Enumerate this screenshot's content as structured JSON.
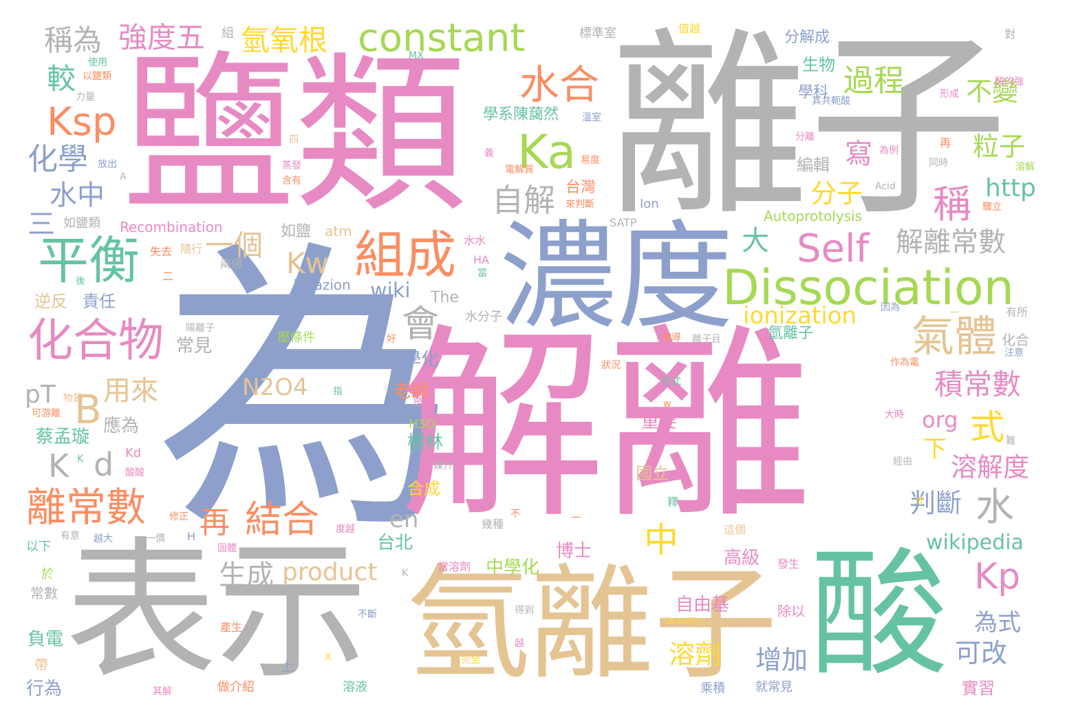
{
  "palette": {
    "pink": "#e78ac3",
    "gray": "#b3b3b3",
    "blue": "#8da0cb",
    "tan": "#e5c494",
    "green": "#66c2a5",
    "orange": "#fc8d62",
    "lime": "#a6d854",
    "yellow": "#ffd92f"
  },
  "words": [
    {
      "text": "為",
      "color": "blue"
    },
    {
      "text": "解離",
      "color": "pink"
    },
    {
      "text": "鹽類",
      "color": "pink"
    },
    {
      "text": "離子",
      "color": "gray"
    },
    {
      "text": "表示",
      "color": "gray"
    },
    {
      "text": "氫離子",
      "color": "tan"
    },
    {
      "text": "酸",
      "color": "green"
    },
    {
      "text": "濃度",
      "color": "blue"
    },
    {
      "text": "Dissociation",
      "color": "lime"
    },
    {
      "text": "constant",
      "color": "lime"
    },
    {
      "text": "平衡",
      "color": "green"
    },
    {
      "text": "組成",
      "color": "orange"
    },
    {
      "text": "化合物",
      "color": "pink"
    },
    {
      "text": "Ka",
      "color": "lime"
    },
    {
      "text": "Self",
      "color": "pink"
    },
    {
      "text": "離常數",
      "color": "orange"
    },
    {
      "text": "Ksp",
      "color": "orange"
    },
    {
      "text": "水合",
      "color": "orange"
    },
    {
      "text": "氣體",
      "color": "tan"
    },
    {
      "text": "Kp",
      "color": "pink"
    },
    {
      "text": "再",
      "color": "orange"
    },
    {
      "text": "結合",
      "color": "orange"
    },
    {
      "text": "自解",
      "color": "gray"
    },
    {
      "text": "過程",
      "color": "lime"
    },
    {
      "text": "稱",
      "color": "pink"
    },
    {
      "text": "水",
      "color": "gray"
    },
    {
      "text": "中",
      "color": "yellow"
    },
    {
      "text": "會",
      "color": "gray"
    },
    {
      "text": "ionization",
      "color": "yellow"
    },
    {
      "text": "解離常數",
      "color": "gray"
    },
    {
      "text": "積常數",
      "color": "pink"
    },
    {
      "text": "氫氧根",
      "color": "yellow"
    },
    {
      "text": "強度五",
      "color": "pink"
    },
    {
      "text": "稱為",
      "color": "gray"
    },
    {
      "text": "較",
      "color": "green"
    },
    {
      "text": "化學",
      "color": "blue"
    },
    {
      "text": "水中",
      "color": "blue"
    },
    {
      "text": "三",
      "color": "blue"
    },
    {
      "text": "一個",
      "color": "tan"
    },
    {
      "text": "Kw",
      "color": "tan"
    },
    {
      "text": "大",
      "color": "green"
    },
    {
      "text": "B",
      "color": "tan"
    },
    {
      "text": "用來",
      "color": "tan"
    },
    {
      "text": "pT",
      "color": "gray"
    },
    {
      "text": "K",
      "color": "gray"
    },
    {
      "text": "d",
      "color": "gray"
    },
    {
      "text": "N2O4",
      "color": "tan"
    },
    {
      "text": "分子",
      "color": "yellow"
    },
    {
      "text": "式",
      "color": "yellow"
    },
    {
      "text": "粒子",
      "color": "lime"
    },
    {
      "text": "http",
      "color": "green"
    },
    {
      "text": "不變",
      "color": "lime"
    },
    {
      "text": "寫",
      "color": "pink"
    },
    {
      "text": "org",
      "color": "pink"
    },
    {
      "text": "溶解度",
      "color": "pink"
    },
    {
      "text": "下",
      "color": "yellow"
    },
    {
      "text": "判斷",
      "color": "blue"
    },
    {
      "text": "wiki",
      "color": "blue"
    },
    {
      "text": "en",
      "color": "gray"
    },
    {
      "text": "生成",
      "color": "gray"
    },
    {
      "text": "product",
      "color": "tan"
    },
    {
      "text": "溶劑",
      "color": "yellow"
    },
    {
      "text": "增加",
      "color": "blue"
    },
    {
      "text": "可改",
      "color": "blue"
    },
    {
      "text": "為式",
      "color": "blue"
    },
    {
      "text": "wikipedia",
      "color": "green"
    },
    {
      "text": "高級",
      "color": "pink"
    },
    {
      "text": "自由基",
      "color": "pink"
    },
    {
      "text": "實習",
      "color": "pink"
    },
    {
      "text": "負電",
      "color": "green"
    },
    {
      "text": "行為",
      "color": "blue"
    },
    {
      "text": "博士",
      "color": "pink"
    },
    {
      "text": "中學化",
      "color": "lime"
    },
    {
      "text": "台北",
      "color": "green"
    },
    {
      "text": "大學化",
      "color": "blue"
    },
    {
      "text": "老師",
      "color": "orange"
    },
    {
      "text": "樹林",
      "color": "green"
    },
    {
      "text": "合成",
      "color": "yellow"
    },
    {
      "text": "國立",
      "color": "tan"
    },
    {
      "text": "重要",
      "color": "pink"
    },
    {
      "text": "常見",
      "color": "gray"
    },
    {
      "text": "應為",
      "color": "gray"
    },
    {
      "text": "蔡孟璇",
      "color": "green"
    },
    {
      "text": "責任",
      "color": "blue"
    },
    {
      "text": "逆反",
      "color": "tan"
    },
    {
      "text": "小",
      "color": "blue"
    },
    {
      "text": "學系陳藹然",
      "color": "green"
    },
    {
      "text": "生物",
      "color": "green"
    },
    {
      "text": "學科",
      "color": "blue"
    },
    {
      "text": "分解成",
      "color": "blue"
    },
    {
      "text": "編輯",
      "color": "gray"
    },
    {
      "text": "Autoprotolysis",
      "color": "lime"
    },
    {
      "text": "氫離子",
      "color": "green"
    },
    {
      "text": "台灣",
      "color": "orange"
    },
    {
      "text": "如鹽",
      "color": "gray"
    },
    {
      "text": "atm",
      "color": "tan"
    },
    {
      "text": "ionazion",
      "color": "blue"
    },
    {
      "text": "The",
      "color": "gray"
    },
    {
      "text": "Recombination",
      "color": "pink"
    },
    {
      "text": "如鹽類",
      "color": "gray"
    },
    {
      "text": "化合",
      "color": "gray"
    },
    {
      "text": "壓條件",
      "color": "lime"
    },
    {
      "text": "水分子",
      "color": "gray"
    },
    {
      "text": "H3O",
      "color": "lime"
    },
    {
      "text": "Kd",
      "color": "pink"
    },
    {
      "text": "溶液",
      "color": "green"
    },
    {
      "text": "做介紹",
      "color": "orange"
    },
    {
      "text": "乘積",
      "color": "blue"
    },
    {
      "text": "就常見",
      "color": "blue"
    },
    {
      "text": "常數",
      "color": "gray"
    },
    {
      "text": "帶",
      "color": "tan"
    },
    {
      "text": "以下",
      "color": "green"
    },
    {
      "text": "於",
      "color": "lime"
    },
    {
      "text": "上",
      "color": "blue"
    },
    {
      "text": "除以",
      "color": "pink"
    },
    {
      "text": "溶解",
      "color": "lime"
    },
    {
      "text": "對",
      "color": "gray"
    },
    {
      "text": "有所",
      "color": "gray"
    },
    {
      "text": "組",
      "color": "gray"
    },
    {
      "text": "MX",
      "color": "green"
    },
    {
      "text": "標準室",
      "color": "gray"
    },
    {
      "text": "值越",
      "color": "yellow"
    },
    {
      "text": "Ion",
      "color": "blue"
    },
    {
      "text": "SATP",
      "color": "gray"
    },
    {
      "text": "HA",
      "color": "pink"
    },
    {
      "text": "Acid",
      "color": "gray"
    },
    {
      "text": "使用",
      "color": "green"
    },
    {
      "text": "以鹽類",
      "color": "orange"
    },
    {
      "text": "力量",
      "color": "gray"
    },
    {
      "text": "放出",
      "color": "blue"
    },
    {
      "text": "失去",
      "color": "orange"
    },
    {
      "text": "隨行",
      "color": "tan"
    },
    {
      "text": "兩個",
      "color": "gray"
    },
    {
      "text": "水水",
      "color": "pink"
    },
    {
      "text": "陽離子",
      "color": "gray"
    },
    {
      "text": "離子且",
      "color": "gray"
    },
    {
      "text": "傳導",
      "color": "orange"
    },
    {
      "text": "形式",
      "color": "green"
    },
    {
      "text": "狀況",
      "color": "orange"
    },
    {
      "text": "溫室",
      "color": "blue"
    },
    {
      "text": "電解質",
      "color": "orange"
    },
    {
      "text": "易度",
      "color": "orange"
    },
    {
      "text": "來判斷",
      "color": "orange"
    },
    {
      "text": "分離",
      "color": "pink"
    },
    {
      "text": "為例",
      "color": "pink"
    },
    {
      "text": "同時",
      "color": "gray"
    },
    {
      "text": "驟立",
      "color": "orange"
    },
    {
      "text": "作為電",
      "color": "orange"
    },
    {
      "text": "因為",
      "color": "blue"
    },
    {
      "text": "注意",
      "color": "blue"
    },
    {
      "text": "形成",
      "color": "pink"
    },
    {
      "text": "酸的強",
      "color": "pink"
    },
    {
      "text": "其共軛酸",
      "color": "blue"
    },
    {
      "text": "是非",
      "color": "pink"
    },
    {
      "text": "媒介",
      "color": "gray"
    },
    {
      "text": "幾種",
      "color": "gray"
    },
    {
      "text": "不斷",
      "color": "blue"
    },
    {
      "text": "得到",
      "color": "gray"
    },
    {
      "text": "完全",
      "color": "yellow"
    },
    {
      "text": "產生",
      "color": "orange"
    },
    {
      "text": "Solubility",
      "color": "yellow"
    },
    {
      "text": "發生",
      "color": "pink"
    },
    {
      "text": "其解",
      "color": "pink"
    },
    {
      "text": "越大",
      "color": "blue"
    },
    {
      "text": "有意",
      "color": "gray"
    },
    {
      "text": "一價",
      "color": "gray"
    },
    {
      "text": "固體",
      "color": "pink"
    },
    {
      "text": "度越",
      "color": "pink"
    },
    {
      "text": "修正",
      "color": "orange"
    },
    {
      "text": "物質",
      "color": "tan"
    },
    {
      "text": "可游離",
      "color": "orange"
    },
    {
      "text": "酸酸",
      "color": "pink"
    },
    {
      "text": "經由",
      "color": "gray"
    },
    {
      "text": "難",
      "color": "gray"
    },
    {
      "text": "大時",
      "color": "pink"
    },
    {
      "text": "這個",
      "color": "tan"
    },
    {
      "text": "釋",
      "color": "green"
    },
    {
      "text": "含有",
      "color": "orange"
    },
    {
      "text": "蒸發",
      "color": "pink"
    },
    {
      "text": "後",
      "color": "green"
    },
    {
      "text": "二",
      "color": "orange"
    },
    {
      "text": "當",
      "color": "green"
    },
    {
      "text": "指",
      "color": "green"
    },
    {
      "text": "好",
      "color": "orange"
    },
    {
      "text": "義",
      "color": "pink"
    },
    {
      "text": "四",
      "color": "tan"
    },
    {
      "text": "再",
      "color": "orange"
    },
    {
      "text": "不",
      "color": "orange"
    },
    {
      "text": "一",
      "color": "orange"
    },
    {
      "text": "H",
      "color": "blue"
    },
    {
      "text": "K",
      "color": "green"
    },
    {
      "text": "w",
      "color": "orange"
    },
    {
      "text": "X",
      "color": "yellow"
    },
    {
      "text": "A",
      "color": "gray"
    },
    {
      "text": "才",
      "color": "yellow"
    },
    {
      "text": "越",
      "color": "pink"
    },
    {
      "text": "當溶劑",
      "color": "pink"
    },
    {
      "text": "K",
      "color": "gray"
    },
    {
      "text": "一",
      "color": "tan"
    }
  ]
}
